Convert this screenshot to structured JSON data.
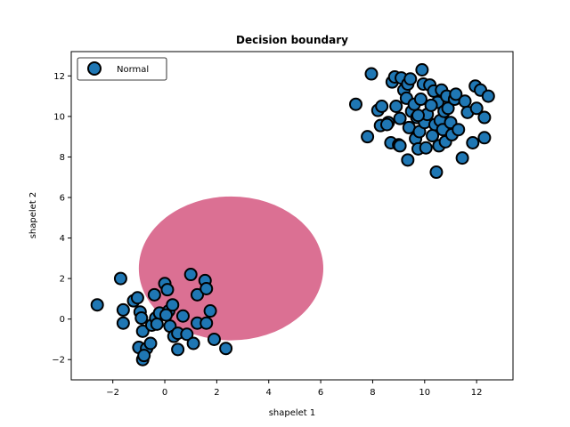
{
  "chart_data": {
    "type": "scatter",
    "title": "Decision boundary",
    "xlabel": "shapelet 1",
    "ylabel": "shapelet 2",
    "xlim": [
      -3.6,
      13.4
    ],
    "ylim": [
      -3.0,
      13.2
    ],
    "xticks": [
      -2,
      0,
      2,
      4,
      6,
      8,
      10,
      12
    ],
    "yticks": [
      -2,
      0,
      2,
      4,
      6,
      8,
      10,
      12
    ],
    "grid": false,
    "legend_position": "top-left",
    "region": {
      "shape": "ellipse",
      "center": [
        2.55,
        2.5
      ],
      "radius_x": 3.55,
      "radius_y": 3.55,
      "color": "#db7093"
    },
    "series": [
      {
        "name": "Normal",
        "color": "#1f77b4",
        "edgecolor": "#000000",
        "points": [
          [
            -2.6,
            0.7
          ],
          [
            -1.7,
            2.0
          ],
          [
            -1.6,
            0.45
          ],
          [
            -1.6,
            -0.2
          ],
          [
            -1.2,
            0.9
          ],
          [
            -1.05,
            1.05
          ],
          [
            -0.95,
            0.35
          ],
          [
            -0.9,
            0.05
          ],
          [
            -1.0,
            -1.4
          ],
          [
            -0.85,
            -0.6
          ],
          [
            -0.7,
            -1.45
          ],
          [
            -0.85,
            -2.0
          ],
          [
            -0.8,
            -1.8
          ],
          [
            -0.55,
            -1.2
          ],
          [
            -0.5,
            -0.3
          ],
          [
            -0.4,
            1.2
          ],
          [
            -0.35,
            0.05
          ],
          [
            -0.3,
            -0.25
          ],
          [
            -0.2,
            0.3
          ],
          [
            0.0,
            1.75
          ],
          [
            0.1,
            1.45
          ],
          [
            0.15,
            0.4
          ],
          [
            0.2,
            -0.35
          ],
          [
            0.3,
            0.7
          ],
          [
            0.35,
            -0.85
          ],
          [
            0.5,
            -0.7
          ],
          [
            0.5,
            -1.5
          ],
          [
            0.7,
            0.15
          ],
          [
            0.85,
            -0.75
          ],
          [
            1.0,
            2.2
          ],
          [
            1.1,
            -1.2
          ],
          [
            1.25,
            1.2
          ],
          [
            1.25,
            -0.2
          ],
          [
            1.55,
            1.9
          ],
          [
            1.6,
            1.5
          ],
          [
            1.6,
            -0.2
          ],
          [
            1.75,
            0.4
          ],
          [
            1.9,
            -1.0
          ],
          [
            2.35,
            -1.45
          ],
          [
            0.05,
            0.2
          ],
          [
            7.35,
            10.6
          ],
          [
            7.8,
            9.0
          ],
          [
            7.95,
            12.1
          ],
          [
            8.2,
            10.3
          ],
          [
            8.3,
            9.55
          ],
          [
            8.35,
            10.5
          ],
          [
            8.6,
            9.7
          ],
          [
            8.7,
            8.7
          ],
          [
            8.75,
            11.7
          ],
          [
            8.85,
            11.95
          ],
          [
            8.9,
            10.5
          ],
          [
            9.0,
            8.6
          ],
          [
            9.05,
            9.9
          ],
          [
            9.1,
            11.9
          ],
          [
            9.2,
            11.3
          ],
          [
            9.3,
            10.9
          ],
          [
            9.35,
            11.6
          ],
          [
            9.35,
            7.85
          ],
          [
            9.4,
            9.45
          ],
          [
            9.45,
            11.85
          ],
          [
            9.5,
            10.25
          ],
          [
            9.6,
            10.6
          ],
          [
            9.65,
            8.9
          ],
          [
            9.7,
            9.95
          ],
          [
            9.75,
            8.4
          ],
          [
            9.8,
            9.25
          ],
          [
            9.85,
            10.85
          ],
          [
            9.9,
            12.3
          ],
          [
            9.95,
            11.6
          ],
          [
            10.0,
            9.7
          ],
          [
            10.05,
            8.45
          ],
          [
            10.1,
            10.1
          ],
          [
            10.2,
            11.55
          ],
          [
            10.3,
            9.05
          ],
          [
            10.35,
            11.25
          ],
          [
            10.4,
            9.6
          ],
          [
            10.45,
            7.25
          ],
          [
            10.5,
            10.7
          ],
          [
            10.55,
            8.55
          ],
          [
            10.6,
            9.8
          ],
          [
            10.65,
            11.3
          ],
          [
            10.7,
            9.35
          ],
          [
            10.75,
            10.25
          ],
          [
            10.8,
            8.75
          ],
          [
            10.85,
            11.0
          ],
          [
            10.9,
            10.4
          ],
          [
            11.0,
            9.7
          ],
          [
            11.05,
            9.1
          ],
          [
            11.15,
            10.85
          ],
          [
            11.2,
            11.1
          ],
          [
            11.3,
            9.35
          ],
          [
            11.45,
            7.95
          ],
          [
            11.55,
            10.75
          ],
          [
            11.65,
            10.2
          ],
          [
            11.85,
            8.7
          ],
          [
            11.95,
            11.5
          ],
          [
            12.0,
            10.4
          ],
          [
            12.15,
            11.3
          ],
          [
            12.3,
            9.95
          ],
          [
            12.3,
            8.95
          ],
          [
            12.45,
            11.0
          ],
          [
            9.05,
            8.55
          ],
          [
            8.55,
            9.6
          ],
          [
            9.75,
            10.05
          ],
          [
            10.25,
            10.55
          ]
        ]
      }
    ]
  }
}
